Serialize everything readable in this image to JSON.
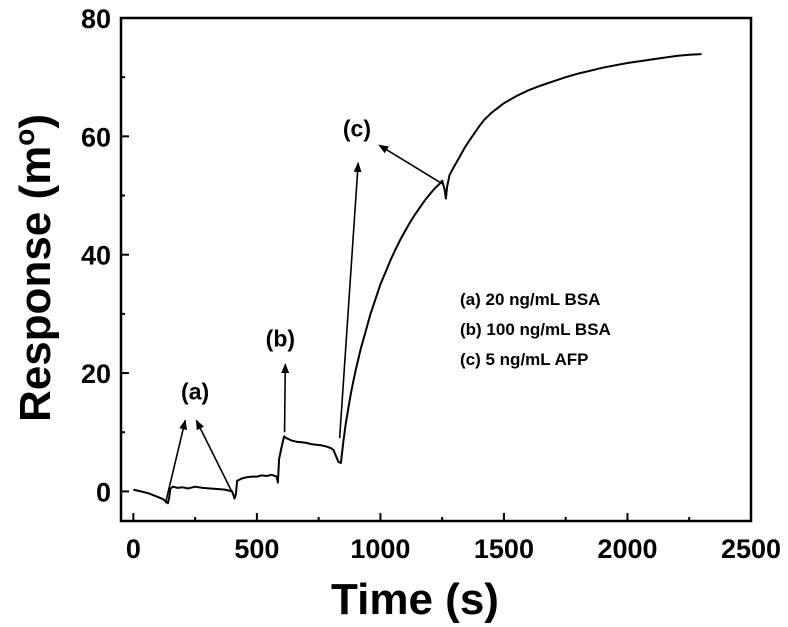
{
  "chart_data": {
    "type": "line",
    "xlabel": "Time (s)",
    "ylabel_main": "Response (m",
    "ylabel_sup": "o",
    "ylabel_close": ")",
    "xlim": [
      -50,
      2500
    ],
    "ylim": [
      -5,
      80
    ],
    "xticks": [
      0,
      500,
      1000,
      1500,
      2000,
      2500
    ],
    "yticks": [
      0,
      20,
      40,
      60,
      80
    ],
    "grid": false,
    "legend_entries": [
      "(a) 20 ng/mL BSA",
      "(b) 100 ng/mL BSA",
      "(c) 5 ng/mL AFP"
    ],
    "annotations": [
      {
        "label": "(a)",
        "x": 250,
        "y": 15.5,
        "arrows": [
          [
            130,
            -2,
            210,
            12
          ],
          [
            410,
            -1,
            255,
            12
          ]
        ]
      },
      {
        "label": "(b)",
        "x": 595,
        "y": 24.5,
        "arrows": [
          [
            612,
            10,
            615,
            21.5
          ]
        ]
      },
      {
        "label": "(c)",
        "x": 905,
        "y": 60,
        "arrows": [
          [
            835,
            9,
            910,
            55.5
          ],
          [
            1250,
            52,
            995,
            58.5
          ]
        ]
      }
    ],
    "series": [
      {
        "x": [
          0,
          30,
          60,
          90,
          120,
          140,
          145,
          150,
          160,
          180,
          200,
          220,
          250,
          280,
          310,
          340,
          370,
          400,
          410,
          415,
          420,
          440,
          460,
          480,
          500,
          520,
          540,
          560,
          580,
          585,
          590,
          600,
          610,
          620,
          640,
          660,
          680,
          700,
          720,
          740,
          760,
          780,
          800,
          810,
          820,
          830,
          840,
          850,
          860,
          870,
          880,
          890,
          900,
          920,
          940,
          960,
          980,
          1000,
          1020,
          1040,
          1060,
          1080,
          1100,
          1120,
          1140,
          1160,
          1180,
          1200,
          1220,
          1240,
          1250,
          1260,
          1265,
          1270,
          1280,
          1300,
          1320,
          1340,
          1360,
          1380,
          1400,
          1420,
          1450,
          1500,
          1550,
          1600,
          1650,
          1700,
          1750,
          1800,
          1850,
          1900,
          1950,
          2000,
          2050,
          2100,
          2150,
          2200,
          2250,
          2300
        ],
        "y": [
          0.3,
          0,
          -0.3,
          -0.8,
          -1.3,
          -2.0,
          -1.0,
          0.5,
          0.8,
          0.6,
          0.7,
          0.5,
          0.8,
          0.6,
          0.5,
          0.4,
          0.3,
          0.0,
          -1.2,
          -0.5,
          1.8,
          2.2,
          2.4,
          2.5,
          2.5,
          2.7,
          2.6,
          2.8,
          2.5,
          1.5,
          5.5,
          7.5,
          9.3,
          9.0,
          8.6,
          8.4,
          8.3,
          8.2,
          8.0,
          7.9,
          7.8,
          7.6,
          7.3,
          7.0,
          6.0,
          5.0,
          4.8,
          8.5,
          11.5,
          14.0,
          16.5,
          18.5,
          20.5,
          24.0,
          27.0,
          30.0,
          32.5,
          35.0,
          37.0,
          39.0,
          40.8,
          42.5,
          44.0,
          45.5,
          46.8,
          48.0,
          49.2,
          50.2,
          51.2,
          52.0,
          52.5,
          51.0,
          49.5,
          51.5,
          53.5,
          55.0,
          56.5,
          58.0,
          59.3,
          60.5,
          61.7,
          62.8,
          64.0,
          65.6,
          66.8,
          67.8,
          68.6,
          69.3,
          70.0,
          70.6,
          71.1,
          71.6,
          72.0,
          72.4,
          72.7,
          73.0,
          73.3,
          73.6,
          73.8,
          73.9
        ]
      }
    ]
  }
}
